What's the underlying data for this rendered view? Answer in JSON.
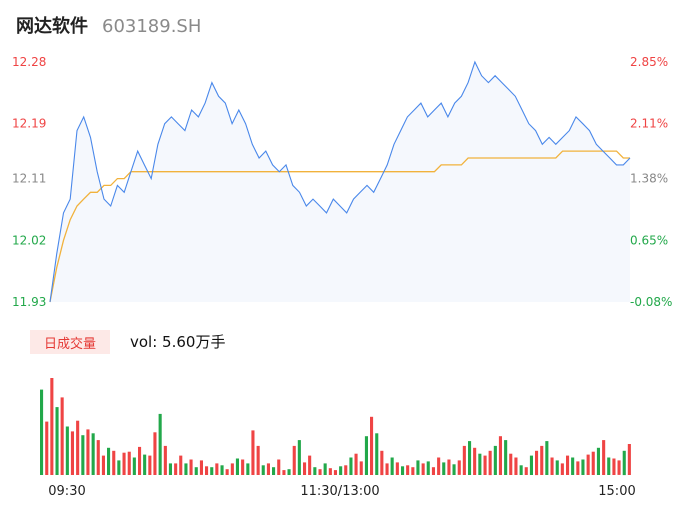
{
  "header": {
    "name": "网达软件",
    "code": "603189.SH"
  },
  "volume_panel": {
    "tab_label": "日成交量",
    "vol_text": "vol: 5.60万手"
  },
  "colors": {
    "price_line": "#4a88ea",
    "avg_line": "#f1b23c",
    "up": "#ef4444",
    "down": "#22a84a",
    "area_fill": "#f5f8fd",
    "neutral_tick": "#888888"
  },
  "chart_data": [
    {
      "type": "line",
      "title": "",
      "xlabel": "",
      "ylabel": "",
      "ylim": [
        11.93,
        12.28
      ],
      "y_ticks_left": [
        "12.28",
        "12.19",
        "12.11",
        "12.02",
        "11.93"
      ],
      "y_ticks_right": [
        "2.85%",
        "2.11%",
        "1.38%",
        "0.65%",
        "-0.08%"
      ],
      "x_ticks": [
        "09:30",
        "11:30/13:00",
        "15:00"
      ],
      "series": [
        {
          "values": [
            11.93,
            12.0,
            12.06,
            12.08,
            12.18,
            12.2,
            12.17,
            12.12,
            12.08,
            12.07,
            12.1,
            12.09,
            12.12,
            12.15,
            12.13,
            12.11,
            12.16,
            12.19,
            12.2,
            12.19,
            12.18,
            12.21,
            12.2,
            12.22,
            12.25,
            12.23,
            12.22,
            12.19,
            12.21,
            12.19,
            12.16,
            12.14,
            12.15,
            12.13,
            12.12,
            12.13,
            12.1,
            12.09,
            12.07,
            12.08,
            12.07,
            12.06,
            12.08,
            12.07,
            12.06,
            12.08,
            12.09,
            12.1,
            12.09,
            12.11,
            12.13,
            12.16,
            12.18,
            12.2,
            12.21,
            12.22,
            12.2,
            12.21,
            12.22,
            12.2,
            12.22,
            12.23,
            12.25,
            12.28,
            12.26,
            12.25,
            12.26,
            12.25,
            12.24,
            12.23,
            12.21,
            12.19,
            12.18,
            12.16,
            12.17,
            12.16,
            12.17,
            12.18,
            12.2,
            12.19,
            12.18,
            12.16,
            12.15,
            12.14,
            12.13,
            12.13,
            12.14
          ],
          "color": "#4a88ea"
        },
        {
          "values": [
            11.93,
            11.98,
            12.02,
            12.05,
            12.07,
            12.08,
            12.09,
            12.09,
            12.1,
            12.1,
            12.11,
            12.11,
            12.12,
            12.12,
            12.12,
            12.12,
            12.12,
            12.12,
            12.12,
            12.12,
            12.12,
            12.12,
            12.12,
            12.12,
            12.12,
            12.12,
            12.12,
            12.12,
            12.12,
            12.12,
            12.12,
            12.12,
            12.12,
            12.12,
            12.12,
            12.12,
            12.12,
            12.12,
            12.12,
            12.12,
            12.12,
            12.12,
            12.12,
            12.12,
            12.12,
            12.12,
            12.12,
            12.12,
            12.12,
            12.12,
            12.12,
            12.12,
            12.12,
            12.12,
            12.12,
            12.12,
            12.12,
            12.12,
            12.13,
            12.13,
            12.13,
            12.13,
            12.14,
            12.14,
            12.14,
            12.14,
            12.14,
            12.14,
            12.14,
            12.14,
            12.14,
            12.14,
            12.14,
            12.14,
            12.14,
            12.14,
            12.15,
            12.15,
            12.15,
            12.15,
            12.15,
            12.15,
            12.15,
            12.15,
            12.15,
            12.14,
            12.14
          ],
          "color": "#f1b23c"
        }
      ]
    },
    {
      "type": "bar",
      "title": "",
      "xlabel": "",
      "ylabel": "",
      "ylim": [
        0,
        100
      ],
      "values": [
        88,
        55,
        100,
        70,
        80,
        50,
        45,
        56,
        41,
        47,
        43,
        36,
        20,
        28,
        25,
        15,
        23,
        24,
        18,
        29,
        21,
        20,
        44,
        63,
        30,
        12,
        12,
        20,
        12,
        16,
        8,
        15,
        9,
        8,
        12,
        10,
        6,
        12,
        17,
        16,
        12,
        46,
        30,
        10,
        12,
        8,
        16,
        5,
        6,
        30,
        36,
        13,
        20,
        8,
        6,
        12,
        7,
        5,
        9,
        10,
        18,
        22,
        14,
        40,
        60,
        43,
        25,
        12,
        18,
        13,
        9,
        10,
        8,
        15,
        12,
        14,
        8,
        18,
        13,
        16,
        11,
        15,
        30,
        35,
        28,
        22,
        20,
        25,
        30,
        40,
        36,
        22,
        18,
        10,
        8,
        20,
        25,
        30,
        35,
        18,
        15,
        12,
        20,
        18,
        14,
        16,
        21,
        24,
        28,
        36,
        18,
        17,
        15,
        25,
        32
      ],
      "colors_up_down": "mixed"
    }
  ]
}
